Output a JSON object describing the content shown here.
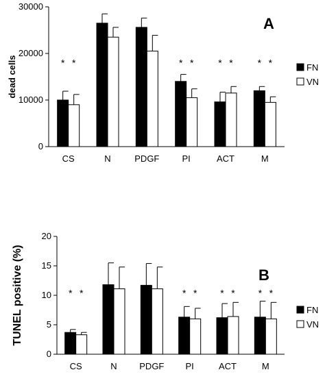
{
  "chart_data": [
    {
      "type": "bar",
      "panel_label": "A",
      "ylabel": "dead cells",
      "ylim": [
        0,
        30000
      ],
      "yticks": [
        "0",
        "10000",
        "20000",
        "30000"
      ],
      "categories": [
        "CS",
        "N",
        "PDGF",
        "PI",
        "ACT",
        "M"
      ],
      "series": [
        {
          "name": "FN",
          "color": "#000000",
          "values": [
            10000,
            26500,
            25600,
            14000,
            9600,
            12000
          ],
          "errors": [
            1900,
            2000,
            2000,
            1500,
            2100,
            900
          ]
        },
        {
          "name": "VN",
          "color": "#ffffff",
          "values": [
            9000,
            23500,
            20500,
            10500,
            11500,
            9500
          ],
          "errors": [
            2200,
            2100,
            3400,
            1900,
            1400,
            1200
          ]
        }
      ],
      "annotations": [
        {
          "category": "CS",
          "series": "FN",
          "text": "*"
        },
        {
          "category": "CS",
          "series": "VN",
          "text": "*"
        },
        {
          "category": "PI",
          "series": "FN",
          "text": "*"
        },
        {
          "category": "PI",
          "series": "VN",
          "text": "*"
        },
        {
          "category": "ACT",
          "series": "FN",
          "text": "*"
        },
        {
          "category": "ACT",
          "series": "VN",
          "text": "*"
        },
        {
          "category": "M",
          "series": "FN",
          "text": "*"
        },
        {
          "category": "M",
          "series": "VN",
          "text": "*"
        }
      ],
      "star_level": 18000,
      "legend_position": "right"
    },
    {
      "type": "bar",
      "panel_label": "B",
      "ylabel": "TUNEL positive (%)",
      "ylim": [
        0,
        20
      ],
      "yticks": [
        "0",
        "5",
        "10",
        "15",
        "20"
      ],
      "categories": [
        "CS",
        "N",
        "PDGF",
        "PI",
        "ACT",
        "M"
      ],
      "series": [
        {
          "name": "FN",
          "color": "#000000",
          "values": [
            3.7,
            11.8,
            11.7,
            6.3,
            6.2,
            6.3
          ],
          "errors": [
            0.5,
            3.7,
            3.7,
            1.8,
            2.4,
            2.7
          ]
        },
        {
          "name": "VN",
          "color": "#ffffff",
          "values": [
            3.3,
            11.1,
            11.1,
            6.0,
            6.4,
            6.0
          ],
          "errors": [
            0.4,
            3.7,
            3.7,
            1.8,
            2.4,
            2.8
          ]
        }
      ],
      "annotations": [
        {
          "category": "CS",
          "series": "FN",
          "text": "*"
        },
        {
          "category": "CS",
          "series": "VN",
          "text": "*"
        },
        {
          "category": "PI",
          "series": "FN",
          "text": "*"
        },
        {
          "category": "PI",
          "series": "VN",
          "text": "*"
        },
        {
          "category": "ACT",
          "series": "FN",
          "text": "*"
        },
        {
          "category": "ACT",
          "series": "VN",
          "text": "*"
        },
        {
          "category": "M",
          "series": "FN",
          "text": "*"
        },
        {
          "category": "M",
          "series": "VN",
          "text": "*"
        }
      ],
      "star_level": 10.4,
      "legend_position": "right"
    }
  ]
}
